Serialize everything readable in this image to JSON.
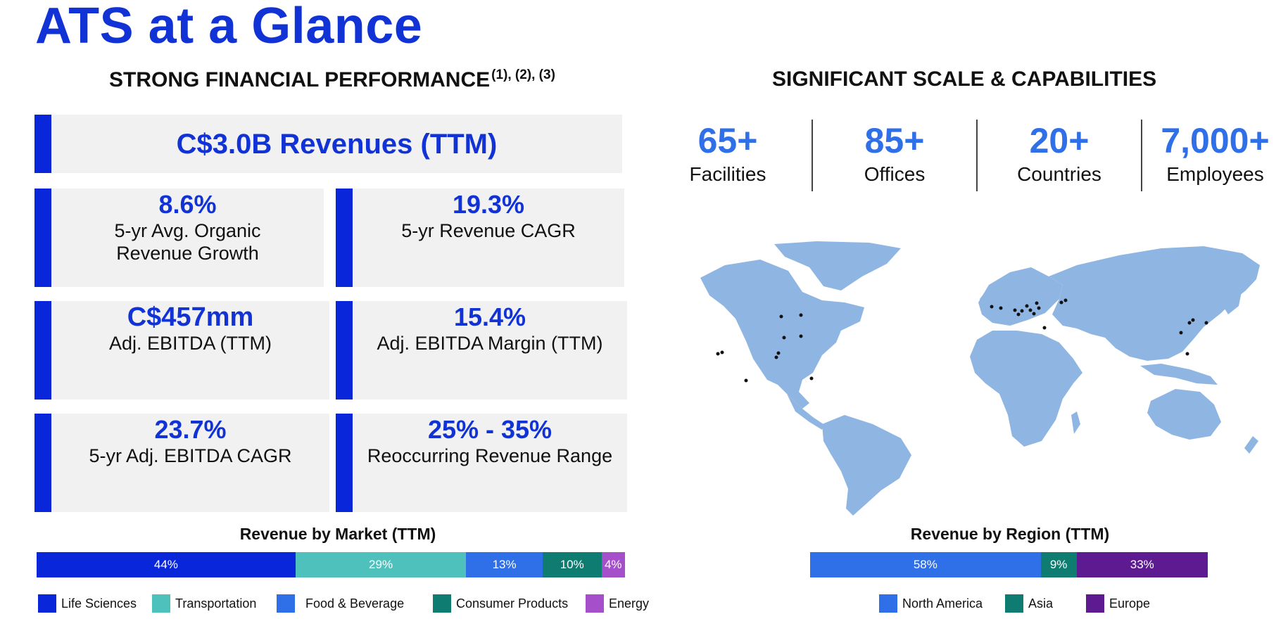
{
  "title": "ATS at a Glance",
  "left_section": {
    "heading": "STRONG FINANCIAL PERFORMANCE",
    "superscript": "(1), (2), (3)"
  },
  "right_section": {
    "heading": "SIGNIFICANT SCALE & CAPABILITIES"
  },
  "revenue_banner": "C$3.0B Revenues (TTM)",
  "metrics": [
    {
      "value": "8.6%",
      "label_1": "5-yr Avg. Organic",
      "label_2": "Revenue Growth"
    },
    {
      "value": "19.3%",
      "label_1": "5-yr Revenue CAGR",
      "label_2": ""
    },
    {
      "value": "C$457mm",
      "label_1": "Adj. EBITDA (TTM)",
      "label_2": ""
    },
    {
      "value": "15.4%",
      "label_1": "Adj. EBITDA Margin (TTM)",
      "label_2": ""
    },
    {
      "value": "23.7%",
      "label_1": "5-yr Adj. EBITDA CAGR",
      "label_2": ""
    },
    {
      "value": "25% - 35%",
      "label_1": "Reoccurring Revenue Range",
      "label_2": ""
    }
  ],
  "stats": [
    {
      "num": "65+",
      "label": "Facilities"
    },
    {
      "num": "85+",
      "label": "Offices"
    },
    {
      "num": "20+",
      "label": "Countries"
    },
    {
      "num": "7,000+",
      "label": "Employees"
    }
  ],
  "market_bar": {
    "title": "Revenue by Market (TTM)",
    "segments": [
      {
        "label": "44%",
        "value": 44,
        "name": "Life Sciences",
        "color": "#0a26db"
      },
      {
        "label": "29%",
        "value": 29,
        "name": "Transportation",
        "color": "#4fc1bd"
      },
      {
        "label": "13%",
        "value": 13,
        "name": "Food & Beverage",
        "color": "#2f6fe8"
      },
      {
        "label": "10%",
        "value": 10,
        "name": "Consumer Products",
        "color": "#0e7c70"
      },
      {
        "label": "4%",
        "value": 4,
        "name": "Energy",
        "color": "#a64fcb"
      }
    ]
  },
  "region_bar": {
    "title": "Revenue by Region (TTM)",
    "segments": [
      {
        "label": "58%",
        "value": 58,
        "name": "North America",
        "color": "#2f6fe8"
      },
      {
        "label": "9%",
        "value": 9,
        "name": "Asia",
        "color": "#0e7c70"
      },
      {
        "label": "33%",
        "value": 33,
        "name": "Europe",
        "color": "#5d1a91"
      }
    ]
  },
  "colors": {
    "title": "#1133d6",
    "accent": "#0a26db",
    "stat": "#2f6fe8",
    "map_land": "#8fb6e2",
    "map_marker": "#111111"
  }
}
